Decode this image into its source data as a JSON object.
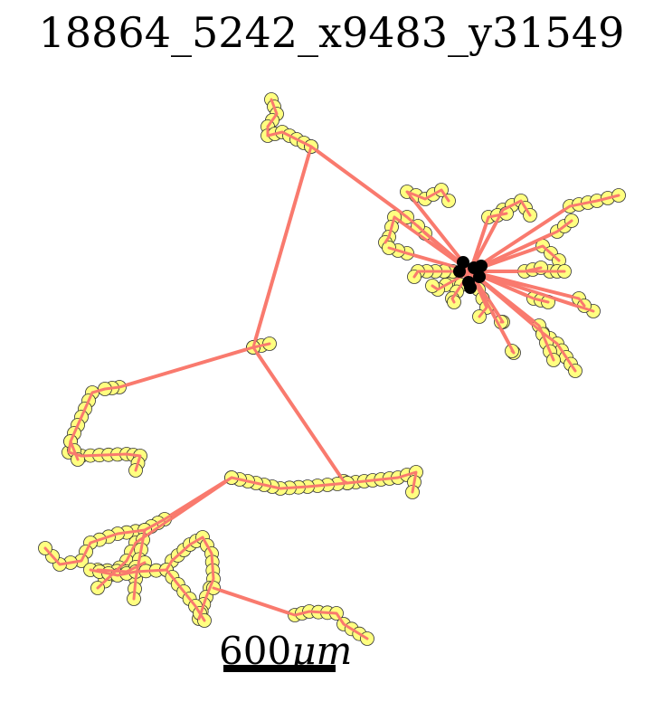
{
  "title": "18864_5242_x9483_y31549",
  "scale_bar": {
    "label_value": "600",
    "label_unit": "μm"
  },
  "colors": {
    "edge": "#f97a6e",
    "node_fill": "#ffff80",
    "node_stroke": "#333333",
    "soma": "#000000"
  }
}
